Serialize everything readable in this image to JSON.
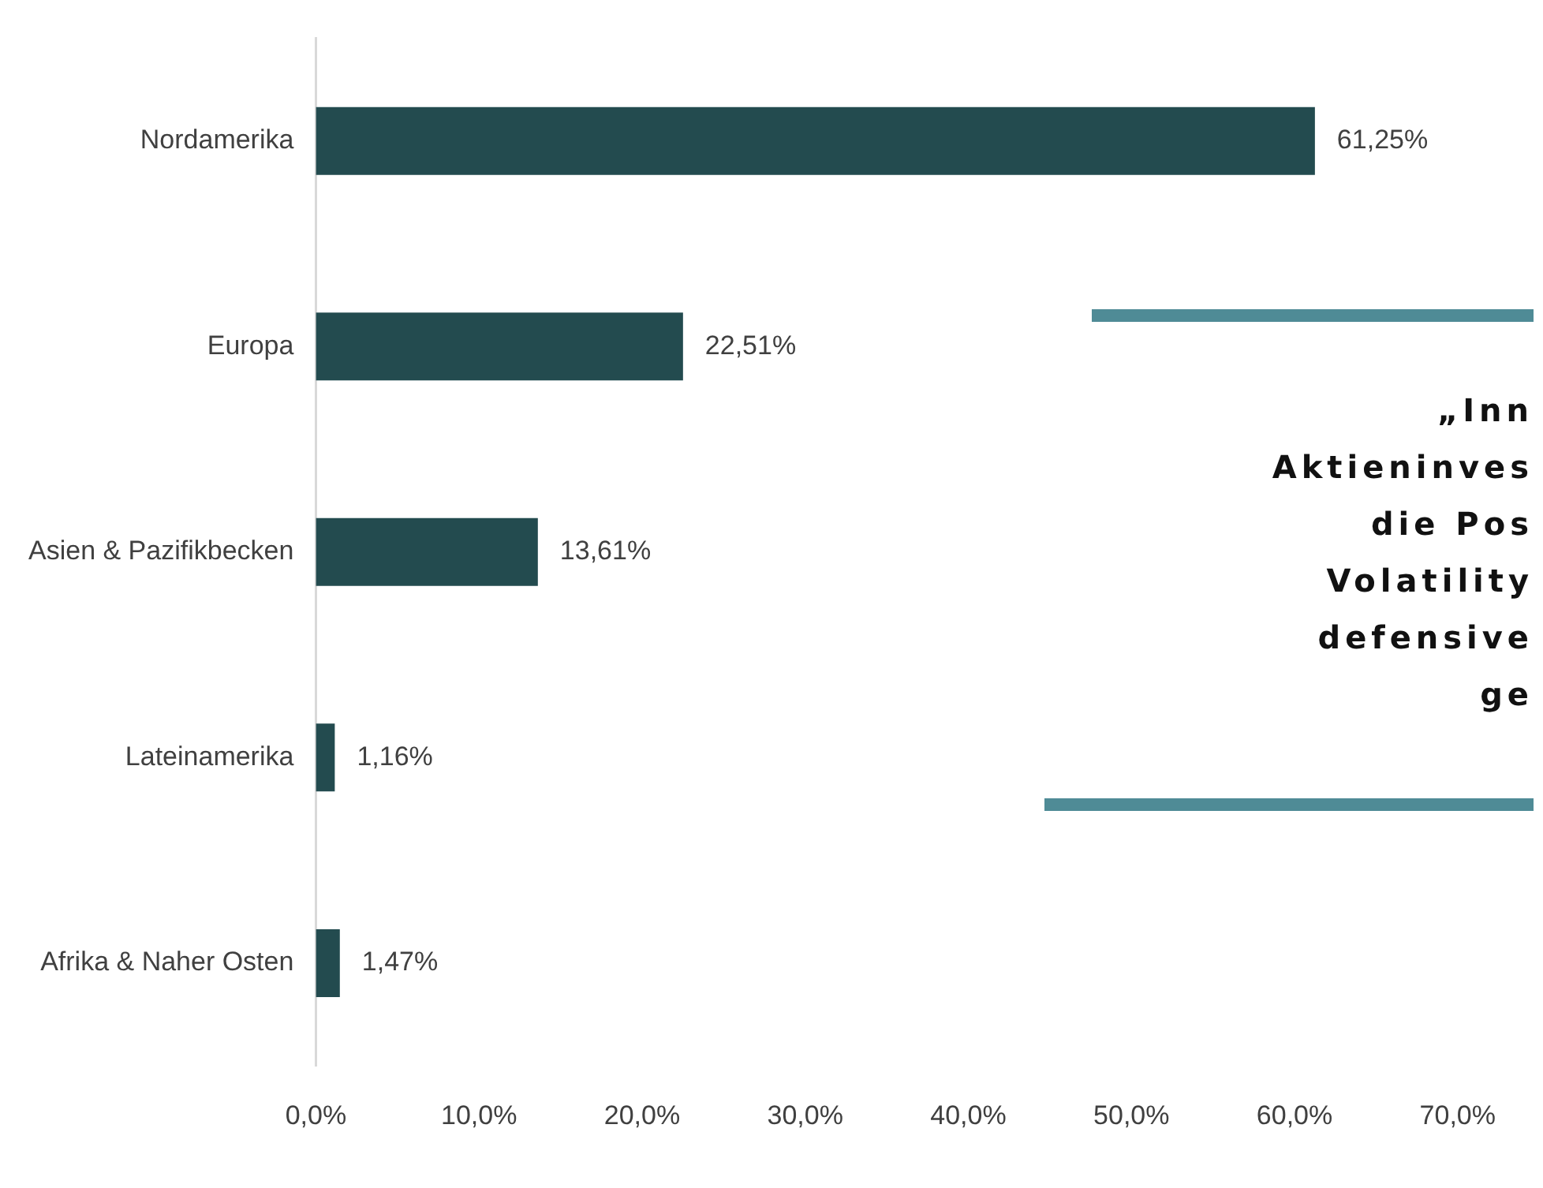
{
  "chart_data": {
    "type": "bar",
    "orientation": "horizontal",
    "categories": [
      "Nordamerika",
      "Europa",
      "Asien & Pazifikbecken",
      "Lateinamerika",
      "Afrika & Naher Osten"
    ],
    "values": [
      61.25,
      22.51,
      13.61,
      1.16,
      1.47
    ],
    "value_labels": [
      "61,25%",
      "22,51%",
      "13,61%",
      "1,16%",
      "1,47%"
    ],
    "color": "#234b4f",
    "xlim": [
      0,
      70
    ],
    "xticks": [
      {
        "value": 0,
        "label": "0,0%"
      },
      {
        "value": 10,
        "label": "10,0%"
      },
      {
        "value": 20,
        "label": "20,0%"
      },
      {
        "value": 30,
        "label": "30,0%"
      },
      {
        "value": 40,
        "label": "40,0%"
      },
      {
        "value": 50,
        "label": "50,0%"
      },
      {
        "value": 60,
        "label": "60,0%"
      },
      {
        "value": 70,
        "label": "70,0%"
      }
    ],
    "grid": false,
    "annotations": [
      "„Inn\nAktieninves\ndie Pos\nVolatility\ndefensive\nge"
    ]
  }
}
